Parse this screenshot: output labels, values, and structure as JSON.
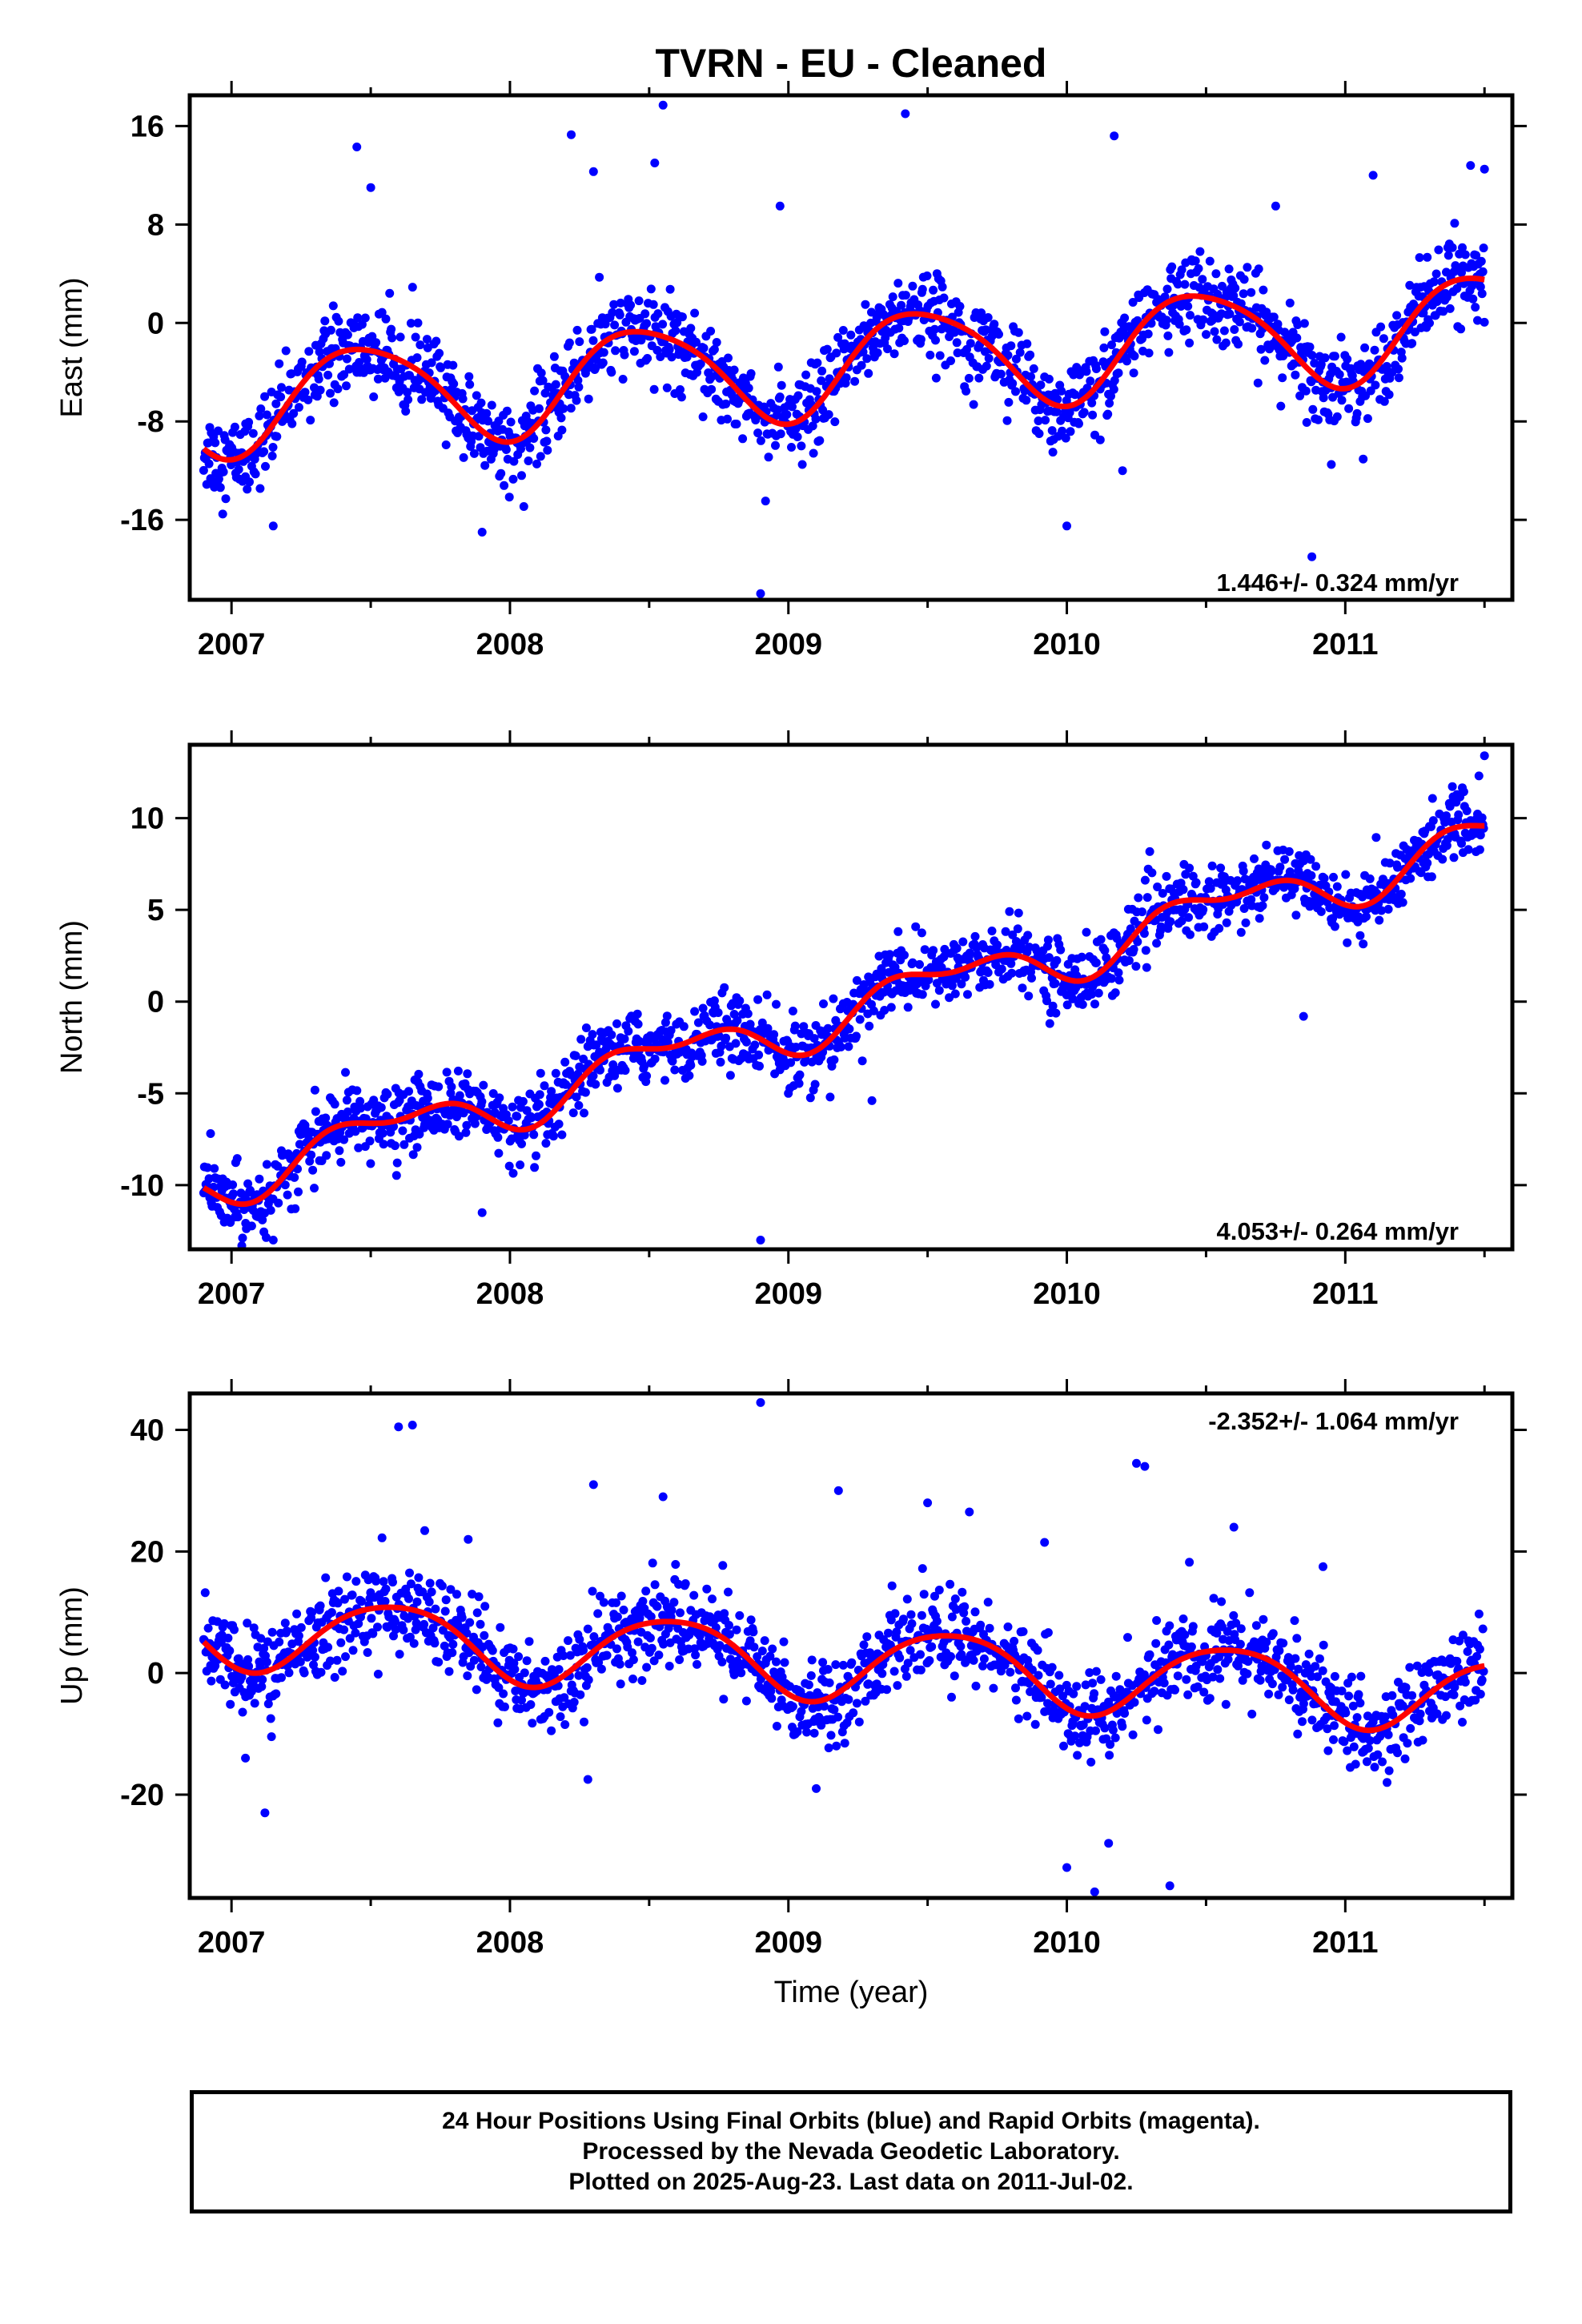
{
  "chart_data": {
    "type": "scatter",
    "title": "TVRN  - EU - Cleaned",
    "xlabel": "Time (year)",
    "xlim": [
      2006.85,
      2011.6
    ],
    "x_ticks": [
      "2007",
      "2008",
      "2009",
      "2010",
      "2011"
    ],
    "panels": [
      {
        "name": "east",
        "ylabel": "East (mm)",
        "ylim": [
          -22.5,
          18.5
        ],
        "yticks": [
          "16",
          "8",
          "0",
          "-8",
          "-16"
        ],
        "ytick_values": [
          16,
          8,
          0,
          -8,
          -16
        ],
        "rate": "1.446+/- 0.324 mm/yr",
        "rate_position": "bottom-right",
        "model": {
          "offset": -3.3,
          "slope": 1.446,
          "annual_amp": 4.1,
          "annual_phase": 2007.23,
          "semi_amp": 0.6,
          "semi_phase": 2007.15
        },
        "scatter_sd": 1.7,
        "outliers": [
          [
            2007.05,
            -12.5
          ],
          [
            2007.15,
            -16.5
          ],
          [
            2007.45,
            14.3
          ],
          [
            2007.5,
            11
          ],
          [
            2007.9,
            -17
          ],
          [
            2008.22,
            15.3
          ],
          [
            2008.3,
            12.3
          ],
          [
            2008.52,
            13
          ],
          [
            2008.55,
            17.7
          ],
          [
            2008.9,
            -22
          ],
          [
            2008.97,
            9.5
          ],
          [
            2009.05,
            -11.5
          ],
          [
            2009.42,
            17
          ],
          [
            2009.95,
            -10.5
          ],
          [
            2010.0,
            -16.5
          ],
          [
            2010.17,
            15.2
          ],
          [
            2010.2,
            -12
          ],
          [
            2010.12,
            -9.5
          ],
          [
            2010.75,
            9.5
          ],
          [
            2010.88,
            -19
          ],
          [
            2010.95,
            -11.5
          ],
          [
            2011.1,
            12
          ],
          [
            2011.45,
            12.8
          ],
          [
            2011.5,
            12.5
          ]
        ]
      },
      {
        "name": "north",
        "ylabel": "North (mm)",
        "ylim": [
          -13.5,
          14
        ],
        "yticks": [
          "10",
          "5",
          "0",
          "-5",
          "-10"
        ],
        "ytick_values": [
          10,
          5,
          0,
          -5,
          -10
        ],
        "rate": "4.053+/- 0.264 mm/yr",
        "rate_position": "bottom-right",
        "model": {
          "offset": -0.5,
          "slope": 4.053,
          "annual_amp": 1.2,
          "annual_phase": 2007.3,
          "semi_amp": 0.65,
          "semi_phase": 2007.2
        },
        "scatter_sd": 0.95,
        "outliers": [
          [
            2007.15,
            -13
          ],
          [
            2007.9,
            -11.5
          ],
          [
            2008.9,
            -13
          ],
          [
            2009.0,
            -5
          ],
          [
            2009.15,
            -5.2
          ],
          [
            2009.3,
            -5.4
          ],
          [
            2010.85,
            -0.8
          ],
          [
            2011.5,
            13.4
          ],
          [
            2011.48,
            12.3
          ]
        ]
      },
      {
        "name": "up",
        "ylabel": "Up (mm)",
        "ylim": [
          -37,
          46
        ],
        "yticks": [
          "40",
          "20",
          "0",
          "-20"
        ],
        "ytick_values": [
          40,
          20,
          0,
          -20
        ],
        "rate": "-2.352+/- 1.064 mm/yr",
        "rate_position": "top-right",
        "model": {
          "offset": 1.8,
          "slope": -2.352,
          "annual_amp": 6.0,
          "annual_phase": 2007.33,
          "semi_amp": 0.8,
          "semi_phase": 2007.2
        },
        "scatter_sd": 3.6,
        "outliers": [
          [
            2007.05,
            -14
          ],
          [
            2007.12,
            -23
          ],
          [
            2007.6,
            40.5
          ],
          [
            2007.65,
            40.8
          ],
          [
            2007.85,
            22
          ],
          [
            2008.3,
            31
          ],
          [
            2008.28,
            -17.5
          ],
          [
            2008.55,
            29
          ],
          [
            2008.9,
            44.5
          ],
          [
            2009.1,
            -19
          ],
          [
            2009.18,
            30
          ],
          [
            2009.5,
            28
          ],
          [
            2009.65,
            26.5
          ],
          [
            2009.92,
            21.5
          ],
          [
            2010.0,
            -32
          ],
          [
            2010.1,
            -36
          ],
          [
            2010.15,
            -28
          ],
          [
            2010.25,
            34.5
          ],
          [
            2010.28,
            34
          ],
          [
            2010.37,
            -35
          ],
          [
            2010.6,
            24
          ],
          [
            2010.92,
            17.5
          ],
          [
            2011.15,
            -18
          ]
        ]
      }
    ],
    "series": [
      {
        "name": "Final Orbits",
        "color": "#0000ff",
        "marker": "dot",
        "date_range": [
          "2006.9",
          "2011.5"
        ]
      },
      {
        "name": "Model fit",
        "color": "#ff0000",
        "marker": "line"
      }
    ]
  },
  "footer": {
    "line1": "24 Hour Positions Using Final Orbits (blue) and Rapid Orbits (magenta).",
    "line2": "Processed by the Nevada Geodetic Laboratory.",
    "line3": "Plotted on 2025-Aug-23. Last data on 2011-Jul-02."
  }
}
